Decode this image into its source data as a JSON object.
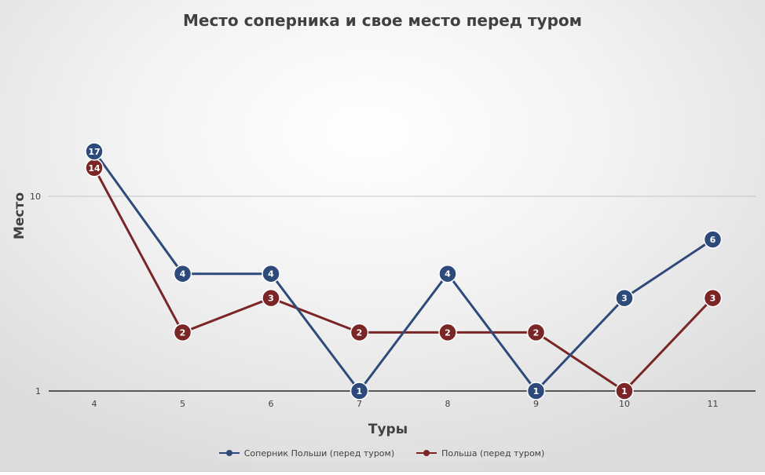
{
  "chart_data": {
    "type": "line",
    "title": "Место соперника и свое место перед туром",
    "xlabel": "Туры",
    "ylabel": "Место",
    "x": [
      4,
      5,
      6,
      7,
      8,
      9,
      10,
      11
    ],
    "y_scale": "log",
    "ylim": [
      1,
      30
    ],
    "y_ticks": [
      1,
      10
    ],
    "y_tick_labels": [
      "1",
      "10"
    ],
    "grid": true,
    "legend_position": "bottom",
    "series": [
      {
        "name": "Соперник Польши (перед туром)",
        "color": "#2e4a7a",
        "values": [
          17,
          4,
          4,
          1,
          4,
          1,
          3,
          6
        ]
      },
      {
        "name": "Польша (перед туром)",
        "color": "#7b2626",
        "values": [
          14,
          2,
          3,
          2,
          2,
          2,
          1,
          3
        ]
      }
    ]
  }
}
